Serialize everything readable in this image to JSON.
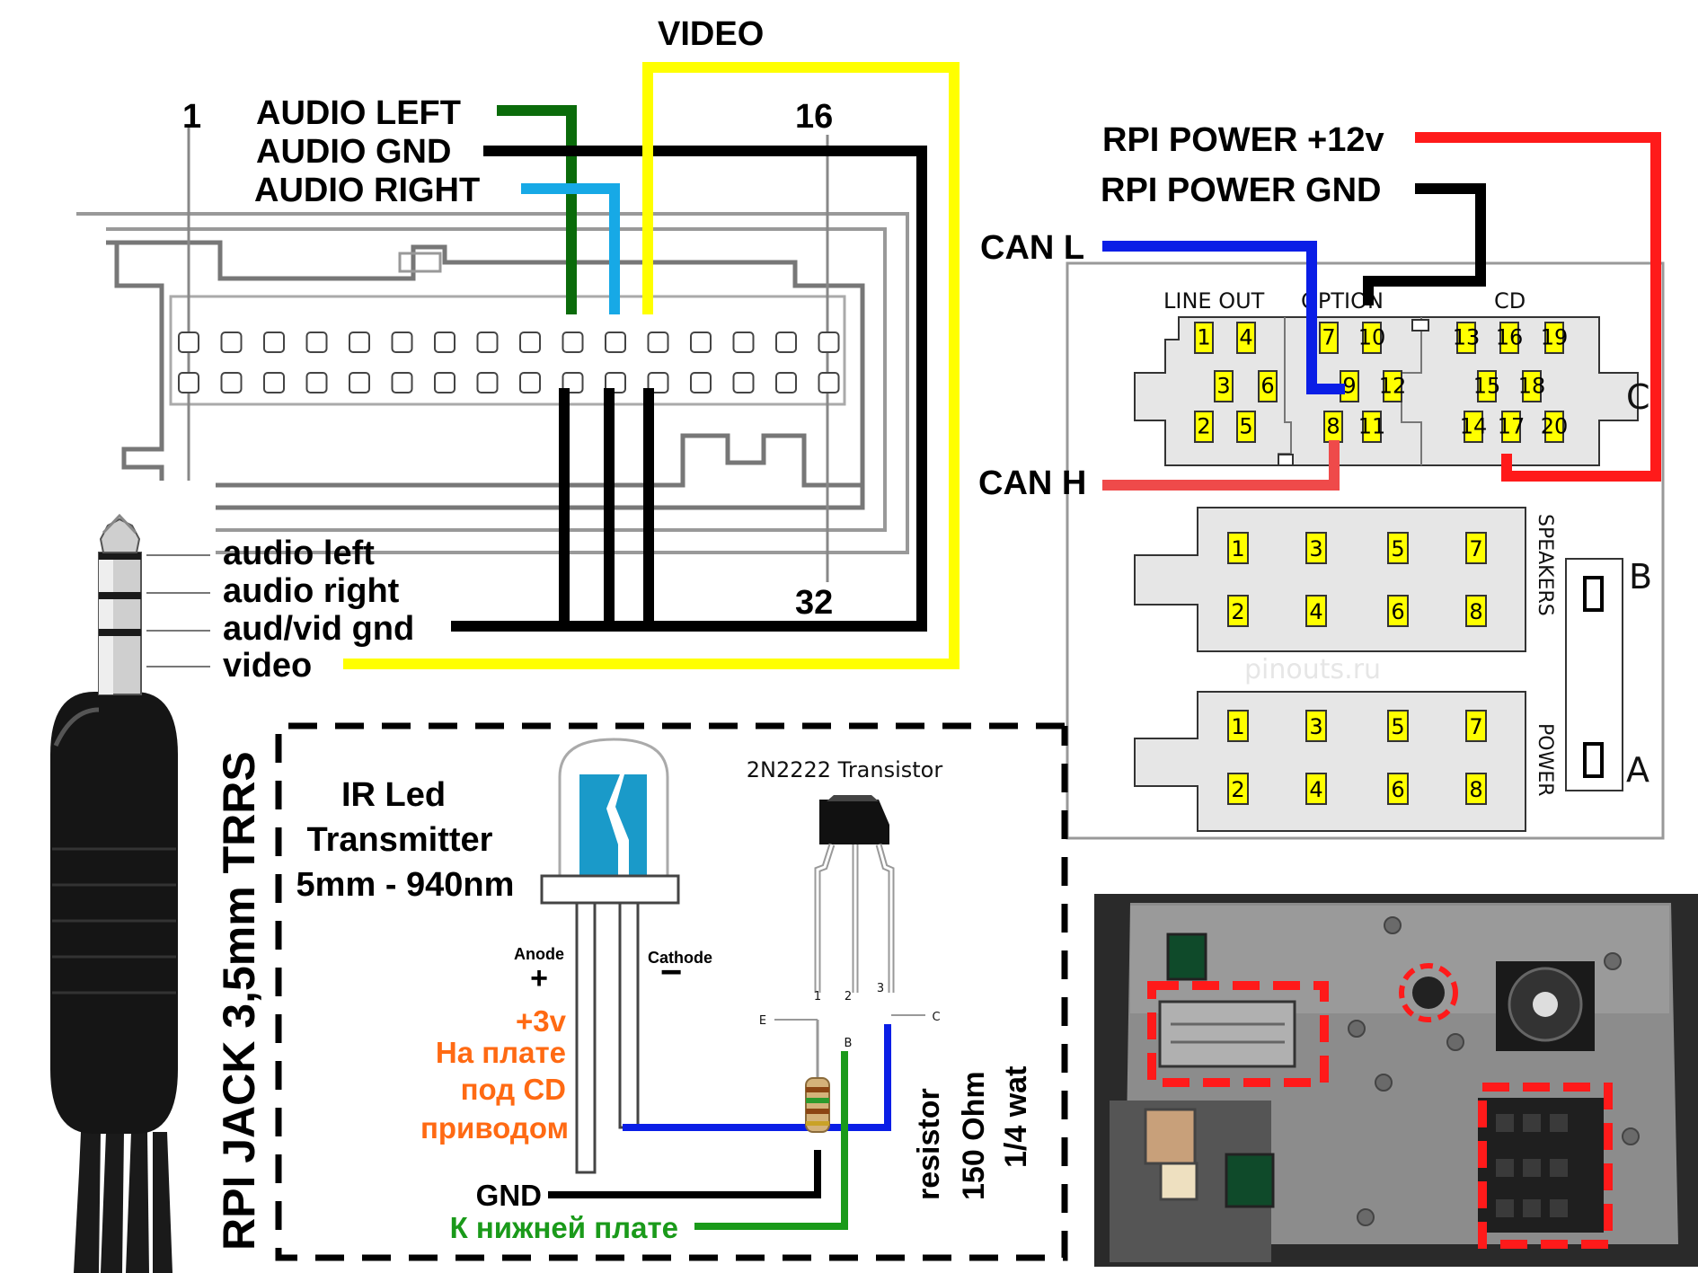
{
  "head_unit_connector": {
    "pin_first": "1",
    "pin_mid": "16",
    "pin_last": "32",
    "labels": {
      "video": "VIDEO",
      "audio_left": "AUDIO LEFT",
      "audio_gnd": "AUDIO GND",
      "audio_right": "AUDIO RIGHT"
    }
  },
  "trrs_jack": {
    "title": "RPI JACK 3,5mm TRRS",
    "rings": [
      "audio left",
      "audio right",
      "aud/vid gnd",
      "video"
    ]
  },
  "iso_connector": {
    "labels": {
      "power_12v": "RPI POWER +12v",
      "power_gnd": "RPI POWER GND",
      "can_l": "CAN L",
      "can_h": "CAN H"
    },
    "section_c": {
      "letter": "C",
      "groups": [
        "LINE OUT",
        "OPTION",
        "CD"
      ],
      "pins": [
        "1",
        "4",
        "7",
        "10",
        "13",
        "16",
        "19",
        "3",
        "6",
        "9",
        "12",
        "15",
        "18",
        "2",
        "5",
        "8",
        "11",
        "14",
        "17",
        "20"
      ]
    },
    "section_b": {
      "letter": "B",
      "name": "SPEAKERS",
      "pins": [
        "1",
        "3",
        "5",
        "7",
        "2",
        "4",
        "6",
        "8"
      ]
    },
    "section_a": {
      "letter": "A",
      "name": "POWER",
      "pins": [
        "1",
        "3",
        "5",
        "7",
        "2",
        "4",
        "6",
        "8"
      ]
    },
    "watermark": "pinouts.ru"
  },
  "ir_circuit": {
    "led_title": [
      "IR Led",
      "Transmitter",
      "5mm - 940nm"
    ],
    "transistor_title": "2N2222 Transistor",
    "anode": "Anode",
    "anode_sign": "+",
    "cathode": "Cathode",
    "cathode_sign": "−",
    "power_lines": [
      "+3v",
      "На плате",
      "под CD",
      "приводом"
    ],
    "pin_numbers": [
      "1",
      "2",
      "3"
    ],
    "pin_letters": [
      "E",
      "B",
      "C"
    ],
    "resistor": [
      "resistor",
      "150 Ohm",
      "1/4 wat"
    ],
    "gnd": "GND",
    "lower_board": "К нижней плате"
  },
  "colors": {
    "green": "#0a6b0a",
    "cyan": "#17a9e6",
    "yellow": "#ffff00",
    "black": "#000000",
    "red": "#ff1a1a",
    "blue": "#0a1ee6",
    "can_h": "#ef4a4a",
    "orange": "#ff6a13",
    "board_green": "#1a9a1a"
  }
}
